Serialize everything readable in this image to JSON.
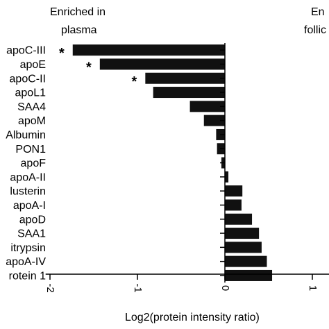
{
  "chart_data": {
    "type": "bar",
    "orientation": "horizontal",
    "categories": [
      "apoC-III",
      "apoE",
      "apoC-II",
      "apoL1",
      "SAA4",
      "apoM",
      "Albumin",
      "PON1",
      "apoF",
      "apoA-II",
      "lusterin",
      "apoA-I",
      "apoD",
      "SAA1",
      "itrypsin",
      "apoA-IV",
      "rotein 1"
    ],
    "values": [
      -1.74,
      -1.43,
      -0.91,
      -0.82,
      -0.4,
      -0.24,
      -0.1,
      -0.09,
      -0.04,
      0.04,
      0.2,
      0.19,
      0.31,
      0.39,
      0.42,
      0.48,
      0.54
    ],
    "significant": [
      true,
      true,
      true,
      false,
      false,
      false,
      false,
      false,
      false,
      false,
      false,
      false,
      false,
      false,
      false,
      false,
      false
    ],
    "significance_marker": "*",
    "xlabel": "Log2(protein intensity ratio)",
    "x_ticks": [
      -2,
      -1,
      0,
      1
    ],
    "xlim": [
      -2.05,
      1.15
    ],
    "headers": {
      "left_line1": "Enriched in",
      "left_line2": "plasma",
      "right_line1": "En",
      "right_line2": "follic"
    },
    "bar_color": "#111111",
    "grid": false
  }
}
